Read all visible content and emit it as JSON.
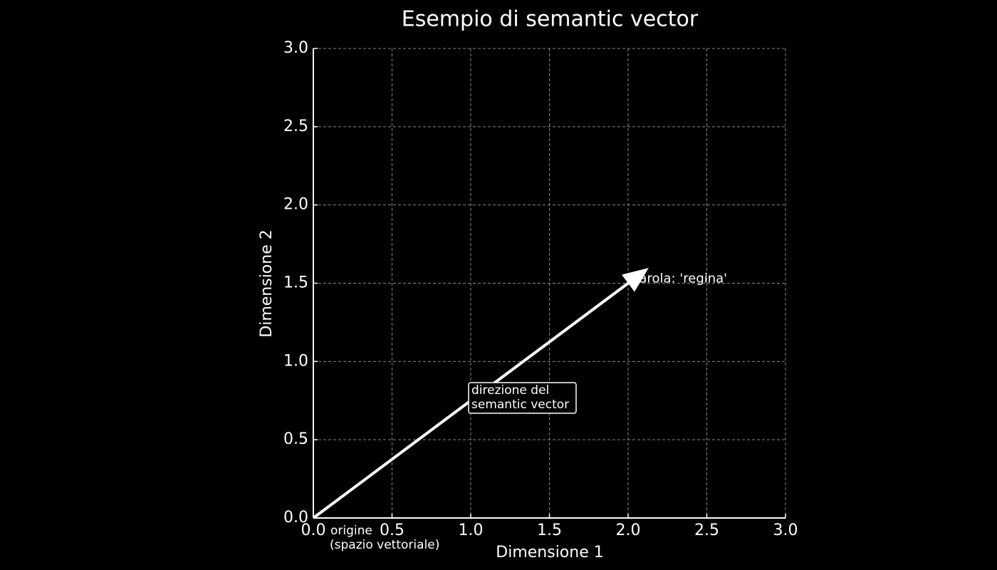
{
  "chart_data": {
    "type": "vector",
    "title": "Esempio di semantic vector",
    "x_label": "Dimensione 1",
    "y_label": "Dimensione 2",
    "vector": {
      "x": [
        0,
        2
      ],
      "y": [
        0,
        1.5
      ],
      "color": "#ffffff"
    },
    "tip_label": "parola: 'regina'",
    "origin_label": [
      "origine",
      "(spazio vettoriale)"
    ],
    "direction_label": [
      "direzione del",
      "semantic vector"
    ],
    "xlim": [
      0,
      3
    ],
    "ylim": [
      0,
      3
    ],
    "xticks": [
      {
        "value": 0,
        "label": "0.0"
      },
      0.5,
      {
        "value": 1,
        "label": "1.0"
      },
      1.5,
      {
        "value": 2,
        "label": "2.0"
      },
      2.5,
      {
        "value": 3,
        "label": "3.0"
      }
    ],
    "yticks": [
      {
        "value": 0,
        "label": "0.0"
      },
      0.5,
      {
        "value": 1,
        "label": "1.0"
      },
      1.5,
      {
        "value": 2,
        "label": "2.0"
      },
      2.5,
      {
        "value": 3,
        "label": "3.0"
      }
    ],
    "grid": true
  }
}
